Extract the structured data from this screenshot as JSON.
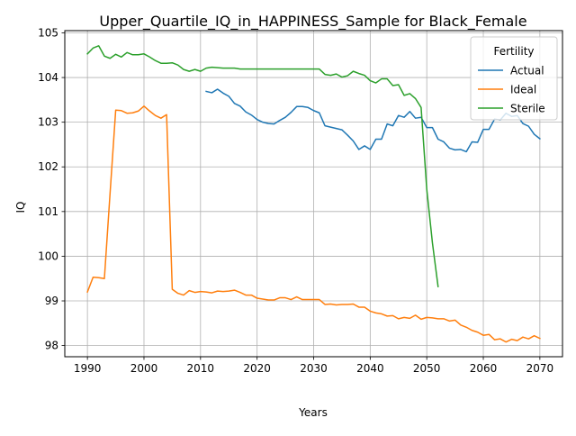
{
  "chart_data": {
    "type": "line",
    "title": "Upper_Quartile_IQ_in_HAPPINESS_Sample for Black_Female",
    "xlabel": "Years",
    "ylabel": "IQ",
    "xlim": [
      1986.0,
      2074.0
    ],
    "ylim": [
      97.75,
      105.05
    ],
    "xticks": [
      1990,
      2000,
      2010,
      2020,
      2030,
      2040,
      2050,
      2060,
      2070
    ],
    "yticks": [
      98,
      99,
      100,
      101,
      102,
      103,
      104,
      105
    ],
    "grid": true,
    "legend": {
      "title": "Fertility",
      "position": "upper-right"
    },
    "series": [
      {
        "name": "Actual",
        "color": "#1f77b4",
        "x": [
          2011,
          2012,
          2013,
          2014,
          2015,
          2016,
          2017,
          2018,
          2019,
          2020,
          2021,
          2022,
          2023,
          2024,
          2025,
          2026,
          2027,
          2028,
          2029,
          2030,
          2031,
          2032,
          2033,
          2034,
          2035,
          2036,
          2037,
          2038,
          2039,
          2040,
          2041,
          2042,
          2043,
          2044,
          2045,
          2046,
          2047,
          2048,
          2049,
          2050,
          2051,
          2052,
          2053,
          2054,
          2055,
          2056,
          2057,
          2058,
          2059,
          2060,
          2061,
          2062,
          2063,
          2064,
          2065,
          2066,
          2067,
          2068,
          2069,
          2070
        ],
        "y": [
          103.69,
          103.66,
          103.74,
          103.65,
          103.58,
          103.42,
          103.36,
          103.23,
          103.16,
          103.06,
          103.0,
          102.97,
          102.96,
          103.04,
          103.11,
          103.22,
          103.35,
          103.35,
          103.33,
          103.26,
          103.21,
          102.92,
          102.89,
          102.86,
          102.83,
          102.71,
          102.58,
          102.39,
          102.47,
          102.39,
          102.62,
          102.62,
          102.96,
          102.92,
          103.15,
          103.11,
          103.24,
          103.09,
          103.11,
          102.88,
          102.88,
          102.62,
          102.56,
          102.42,
          102.38,
          102.39,
          102.34,
          102.56,
          102.55,
          102.84,
          102.84,
          103.07,
          103.05,
          103.2,
          103.13,
          103.15,
          102.97,
          102.91,
          102.73,
          102.63
        ]
      },
      {
        "name": "Ideal",
        "color": "#ff7f0e",
        "x": [
          1990,
          1991,
          1992,
          1993,
          1994,
          1995,
          1996,
          1997,
          1998,
          1999,
          2000,
          2001,
          2002,
          2003,
          2004,
          2005,
          2006,
          2007,
          2008,
          2009,
          2010,
          2011,
          2012,
          2013,
          2014,
          2015,
          2016,
          2017,
          2018,
          2019,
          2020,
          2021,
          2022,
          2023,
          2024,
          2025,
          2026,
          2027,
          2028,
          2029,
          2030,
          2031,
          2032,
          2033,
          2034,
          2035,
          2036,
          2037,
          2038,
          2039,
          2040,
          2041,
          2042,
          2043,
          2044,
          2045,
          2046,
          2047,
          2048,
          2049,
          2050,
          2051,
          2052,
          2053,
          2054,
          2055,
          2056,
          2057,
          2058,
          2059,
          2060,
          2061,
          2062,
          2063,
          2064,
          2065,
          2066,
          2067,
          2068,
          2069,
          2070
        ],
        "y": [
          99.2,
          99.53,
          99.52,
          99.5,
          101.4,
          103.27,
          103.26,
          103.2,
          103.21,
          103.25,
          103.36,
          103.25,
          103.15,
          103.09,
          103.17,
          99.26,
          99.17,
          99.13,
          99.23,
          99.19,
          99.21,
          99.2,
          99.18,
          99.22,
          99.21,
          99.22,
          99.24,
          99.19,
          99.13,
          99.13,
          99.06,
          99.04,
          99.02,
          99.02,
          99.07,
          99.07,
          99.03,
          99.09,
          99.03,
          99.03,
          99.03,
          99.03,
          98.92,
          98.93,
          98.91,
          98.92,
          98.92,
          98.93,
          98.86,
          98.86,
          98.77,
          98.73,
          98.71,
          98.66,
          98.67,
          98.6,
          98.63,
          98.61,
          98.68,
          98.59,
          98.63,
          98.62,
          98.6,
          98.6,
          98.55,
          98.57,
          98.46,
          98.41,
          98.34,
          98.3,
          98.23,
          98.25,
          98.13,
          98.15,
          98.08,
          98.14,
          98.11,
          98.19,
          98.15,
          98.22,
          98.16
        ]
      },
      {
        "name": "Sterile",
        "color": "#2ca02c",
        "x": [
          1990,
          1991,
          1992,
          1993,
          1994,
          1995,
          1996,
          1997,
          1998,
          1999,
          2000,
          2001,
          2002,
          2003,
          2004,
          2005,
          2006,
          2007,
          2008,
          2009,
          2010,
          2011,
          2012,
          2013,
          2014,
          2015,
          2016,
          2017,
          2018,
          2019,
          2020,
          2021,
          2022,
          2023,
          2024,
          2025,
          2026,
          2027,
          2028,
          2029,
          2030,
          2031,
          2032,
          2033,
          2034,
          2035,
          2036,
          2037,
          2038,
          2039,
          2040,
          2041,
          2042,
          2043,
          2044,
          2045,
          2046,
          2047,
          2048,
          2049,
          2050,
          2051,
          2052
        ],
        "y": [
          104.53,
          104.66,
          104.71,
          104.48,
          104.43,
          104.52,
          104.46,
          104.56,
          104.51,
          104.51,
          104.53,
          104.46,
          104.38,
          104.32,
          104.32,
          104.33,
          104.28,
          104.18,
          104.14,
          104.18,
          104.14,
          104.21,
          104.23,
          104.22,
          104.21,
          104.21,
          104.21,
          104.19,
          104.19,
          104.19,
          104.19,
          104.19,
          104.19,
          104.19,
          104.19,
          104.19,
          104.19,
          104.19,
          104.19,
          104.19,
          104.19,
          104.19,
          104.07,
          104.05,
          104.08,
          104.01,
          104.04,
          104.14,
          104.09,
          104.05,
          103.93,
          103.88,
          103.97,
          103.97,
          103.82,
          103.84,
          103.6,
          103.64,
          103.53,
          103.33,
          101.5,
          100.3,
          99.32
        ]
      }
    ]
  }
}
